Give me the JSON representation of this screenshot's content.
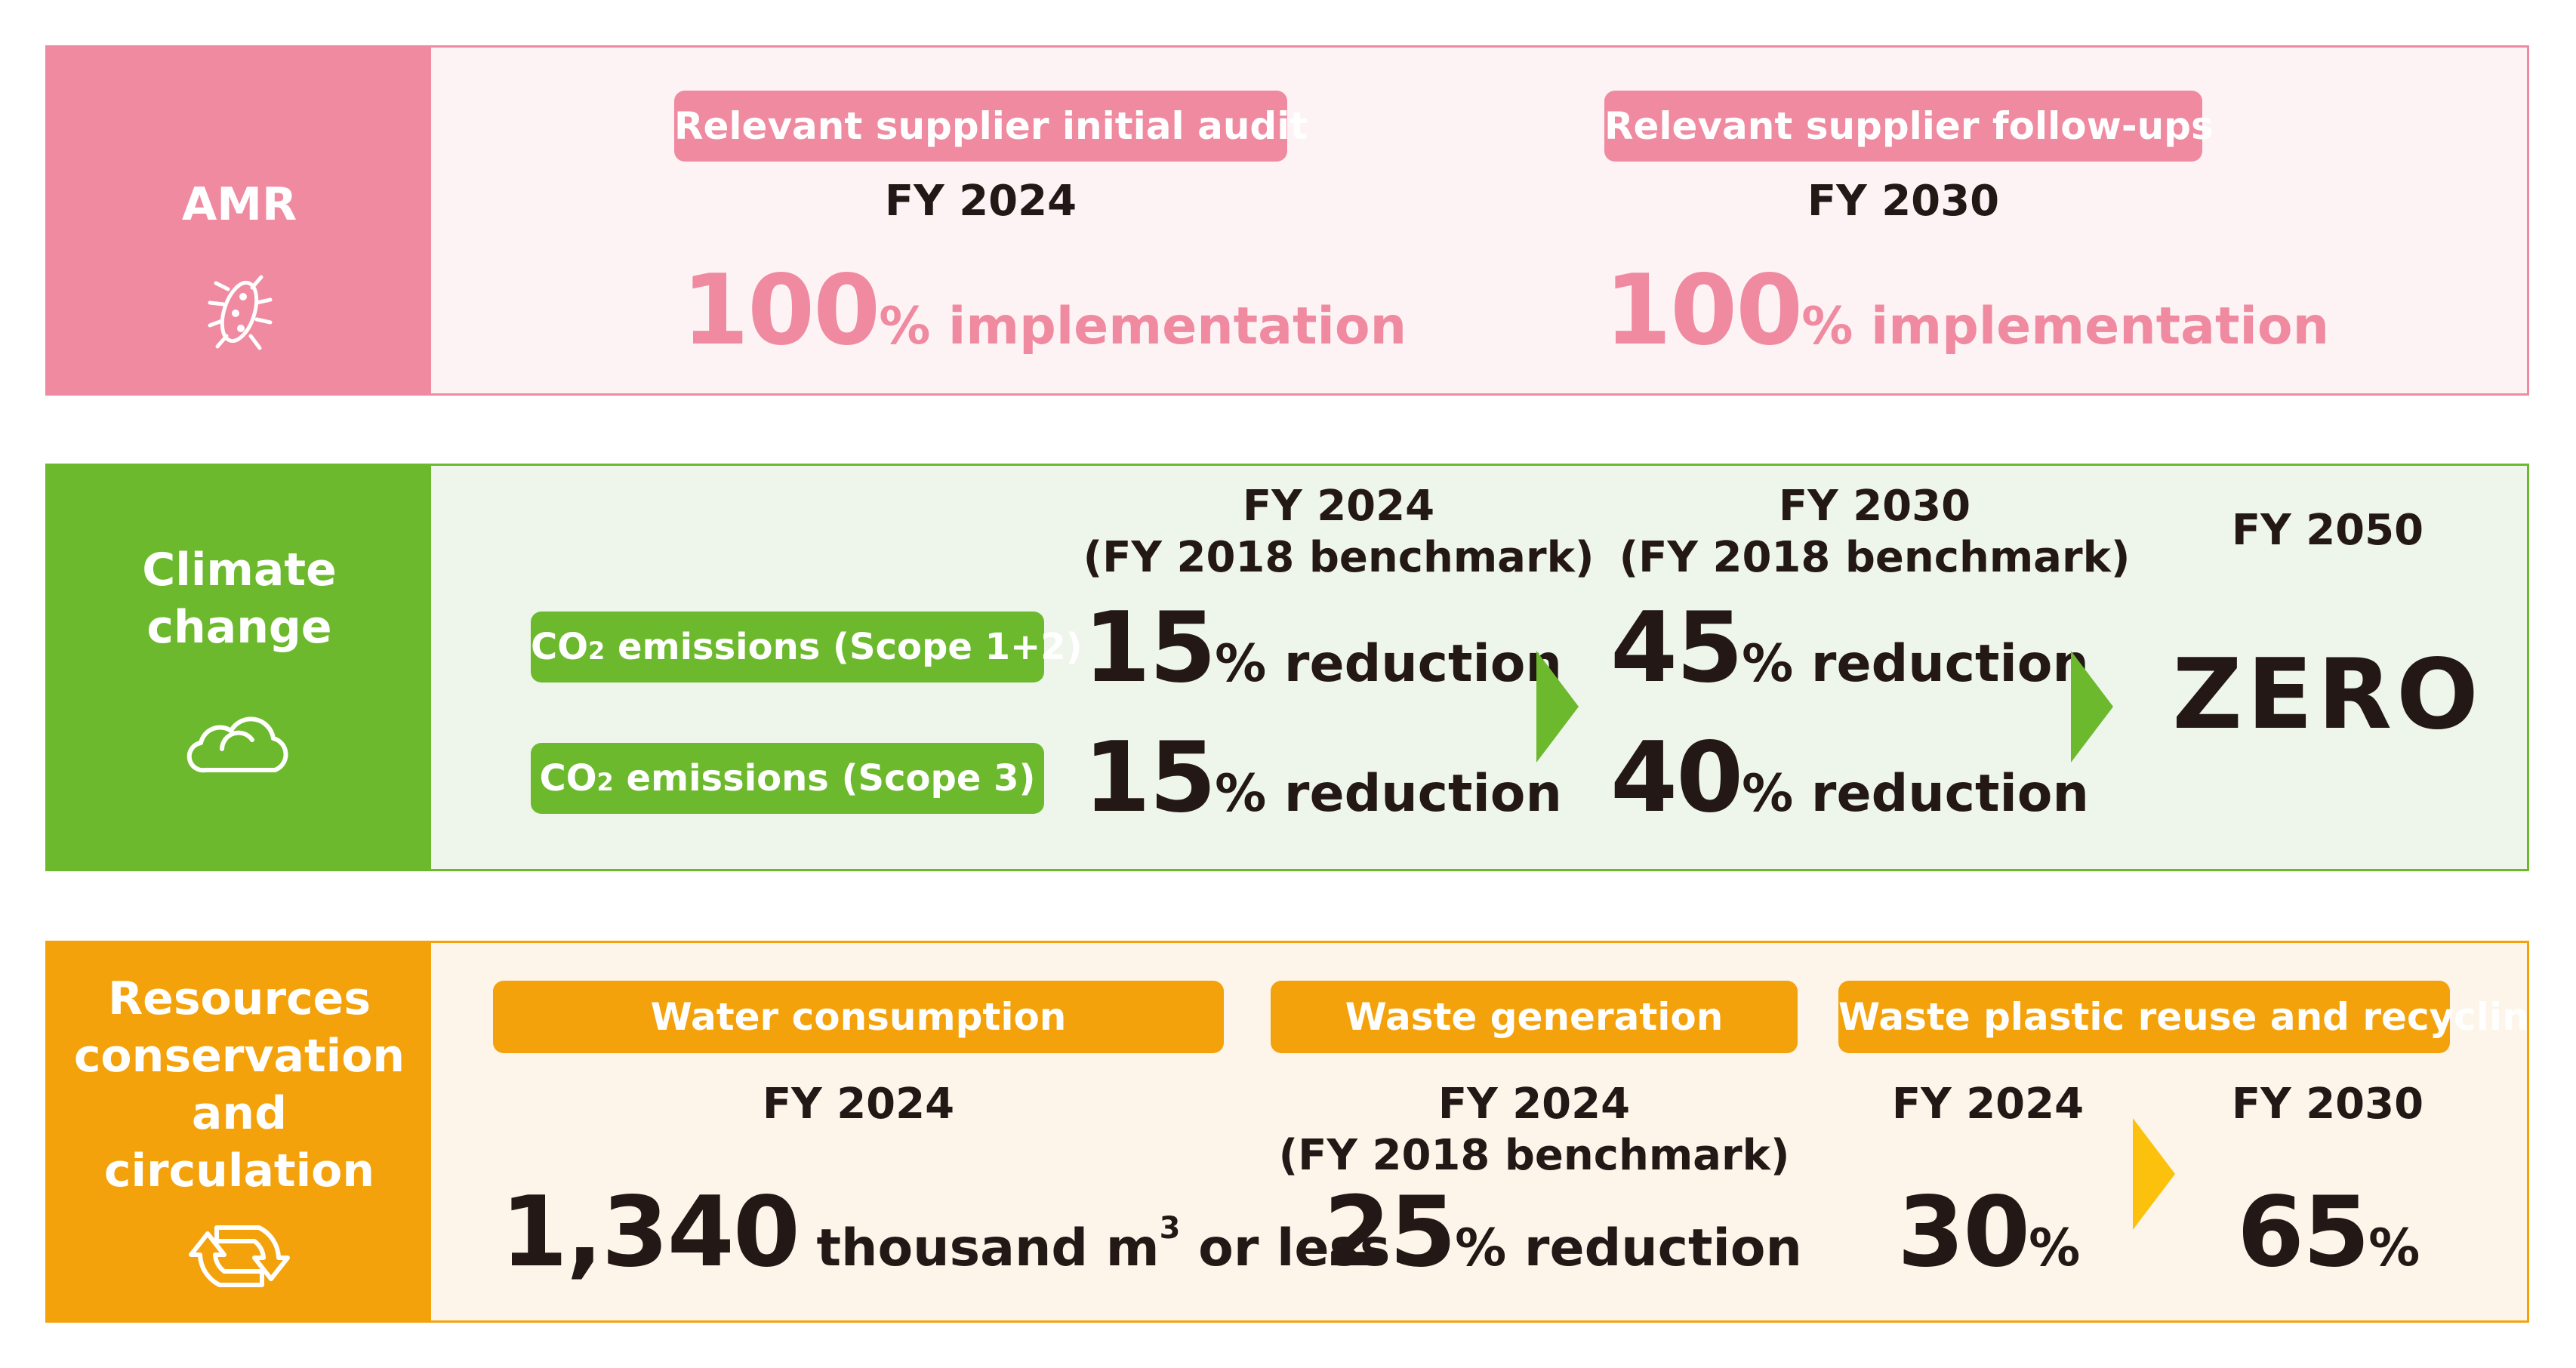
{
  "colors": {
    "pink": "#ef8aa0",
    "green": "#6cb92d",
    "orange": "#f4a20c"
  },
  "amr": {
    "title": "AMR",
    "icon": "bacteria-icon",
    "left": {
      "pill": "Relevant supplier initial audit",
      "fy": "FY 2024",
      "number": "100",
      "unit": "% implementation"
    },
    "right": {
      "pill": "Relevant supplier follow-ups",
      "fy": "FY 2030",
      "number": "100",
      "unit": "% implementation"
    }
  },
  "climate": {
    "title_line1": "Climate",
    "title_line2": "change",
    "icon": "cloud-icon",
    "fy2024": {
      "line1": "FY 2024",
      "line2": "(FY 2018 benchmark)"
    },
    "fy2030": {
      "line1": "FY 2030",
      "line2": "(FY 2018 benchmark)"
    },
    "fy2050": "FY 2050",
    "scope12": {
      "label_pre": "CO",
      "label_sub": "2",
      "label_post": " emissions (Scope 1+2)",
      "v2024": "15",
      "v2030": "45",
      "unit": "% reduction"
    },
    "scope3": {
      "label_pre": "CO",
      "label_sub": "2",
      "label_post": " emissions (Scope 3)",
      "v2024": "15",
      "v2030": "40",
      "unit": "% reduction"
    },
    "zero": "ZERO"
  },
  "resources": {
    "title_line1": "Resources",
    "title_line2": "conservation",
    "title_line3": "and",
    "title_line4": "circulation",
    "icon": "recycle-icon",
    "water": {
      "pill": "Water consumption",
      "fy": "FY 2024",
      "number": "1,340",
      "unit": " thousand m",
      "sup": "3",
      "tail": " or less"
    },
    "waste": {
      "pill": "Waste generation",
      "fy_line1": "FY 2024",
      "fy_line2": "(FY 2018 benchmark)",
      "number": "25",
      "unit": "% reduction"
    },
    "plastic": {
      "pill": "Waste plastic reuse and recycling",
      "fy2024": "FY 2024",
      "v2024": "30",
      "fy2030": "FY 2030",
      "v2030": "65",
      "unit": "%"
    }
  }
}
